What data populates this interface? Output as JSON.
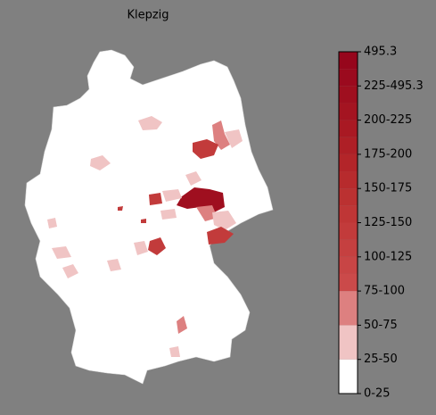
{
  "title": "Klepzig",
  "colorbar": {
    "labels": [
      "0-25",
      "25-50",
      "50-75",
      "75-100",
      "100-125",
      "125-150",
      "150-175",
      "175-200",
      "200-225",
      "225-495.3",
      "495.3"
    ],
    "colors": [
      "#ffffff",
      "#f0c4c4",
      "#dd8080",
      "#cb4a4a",
      "#c84545",
      "#c54040",
      "#c23b3b",
      "#bf3636",
      "#bb3131",
      "#b72b2d",
      "#b32529",
      "#ae1f26",
      "#a91923",
      "#a41421",
      "#9f0f1f",
      "#9b0a1e",
      "#96061c"
    ]
  }
}
